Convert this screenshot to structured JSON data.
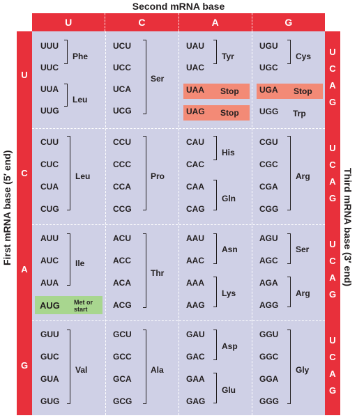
{
  "titles": {
    "top": "Second mRNA base",
    "left": "First mRNA base  (5′ end)",
    "right": "Third mRNA base  (3′ end)"
  },
  "bases": [
    "U",
    "C",
    "A",
    "G"
  ],
  "third_bases": [
    "U",
    "C",
    "A",
    "G"
  ],
  "codons": [
    [
      "UUU",
      "UUC",
      "UUA",
      "UUG"
    ],
    [
      "UCU",
      "UCC",
      "UCA",
      "UCG"
    ],
    [
      "UAU",
      "UAC",
      "UAA",
      "UAG"
    ],
    [
      "UGU",
      "UGC",
      "UGA",
      "UGG"
    ],
    [
      "CUU",
      "CUC",
      "CUA",
      "CUG"
    ],
    [
      "CCU",
      "CCC",
      "CCA",
      "CCG"
    ],
    [
      "CAU",
      "CAC",
      "CAA",
      "CAG"
    ],
    [
      "CGU",
      "CGC",
      "CGA",
      "CGG"
    ],
    [
      "AUU",
      "AUC",
      "AUA",
      "AUG"
    ],
    [
      "ACU",
      "ACC",
      "ACA",
      "ACG"
    ],
    [
      "AAU",
      "AAC",
      "AAA",
      "AAG"
    ],
    [
      "AGU",
      "AGC",
      "AGA",
      "AGG"
    ],
    [
      "GUU",
      "GUC",
      "GUA",
      "GUG"
    ],
    [
      "GCU",
      "GCC",
      "GCA",
      "GCG"
    ],
    [
      "GAU",
      "GAC",
      "GAA",
      "GAG"
    ],
    [
      "GGU",
      "GGC",
      "GGA",
      "GGG"
    ]
  ],
  "amino_acids": {
    "phe": "Phe",
    "leu1": "Leu",
    "ser1": "Ser",
    "tyr": "Tyr",
    "stop1": "Stop",
    "stop2": "Stop",
    "cys": "Cys",
    "stop3": "Stop",
    "trp": "Trp",
    "leu2": "Leu",
    "pro": "Pro",
    "his": "His",
    "gln": "Gln",
    "arg1": "Arg",
    "ile": "Ile",
    "met": "Met or start",
    "thr": "Thr",
    "asn": "Asn",
    "lys": "Lys",
    "ser2": "Ser",
    "arg2": "Arg",
    "val": "Val",
    "ala": "Ala",
    "asp": "Asp",
    "glu": "Glu",
    "gly": "Gly"
  },
  "colors": {
    "header": "#e8303b",
    "grid": "#cfd0e6",
    "stop": "#f38a76",
    "start": "#a8d68f"
  }
}
